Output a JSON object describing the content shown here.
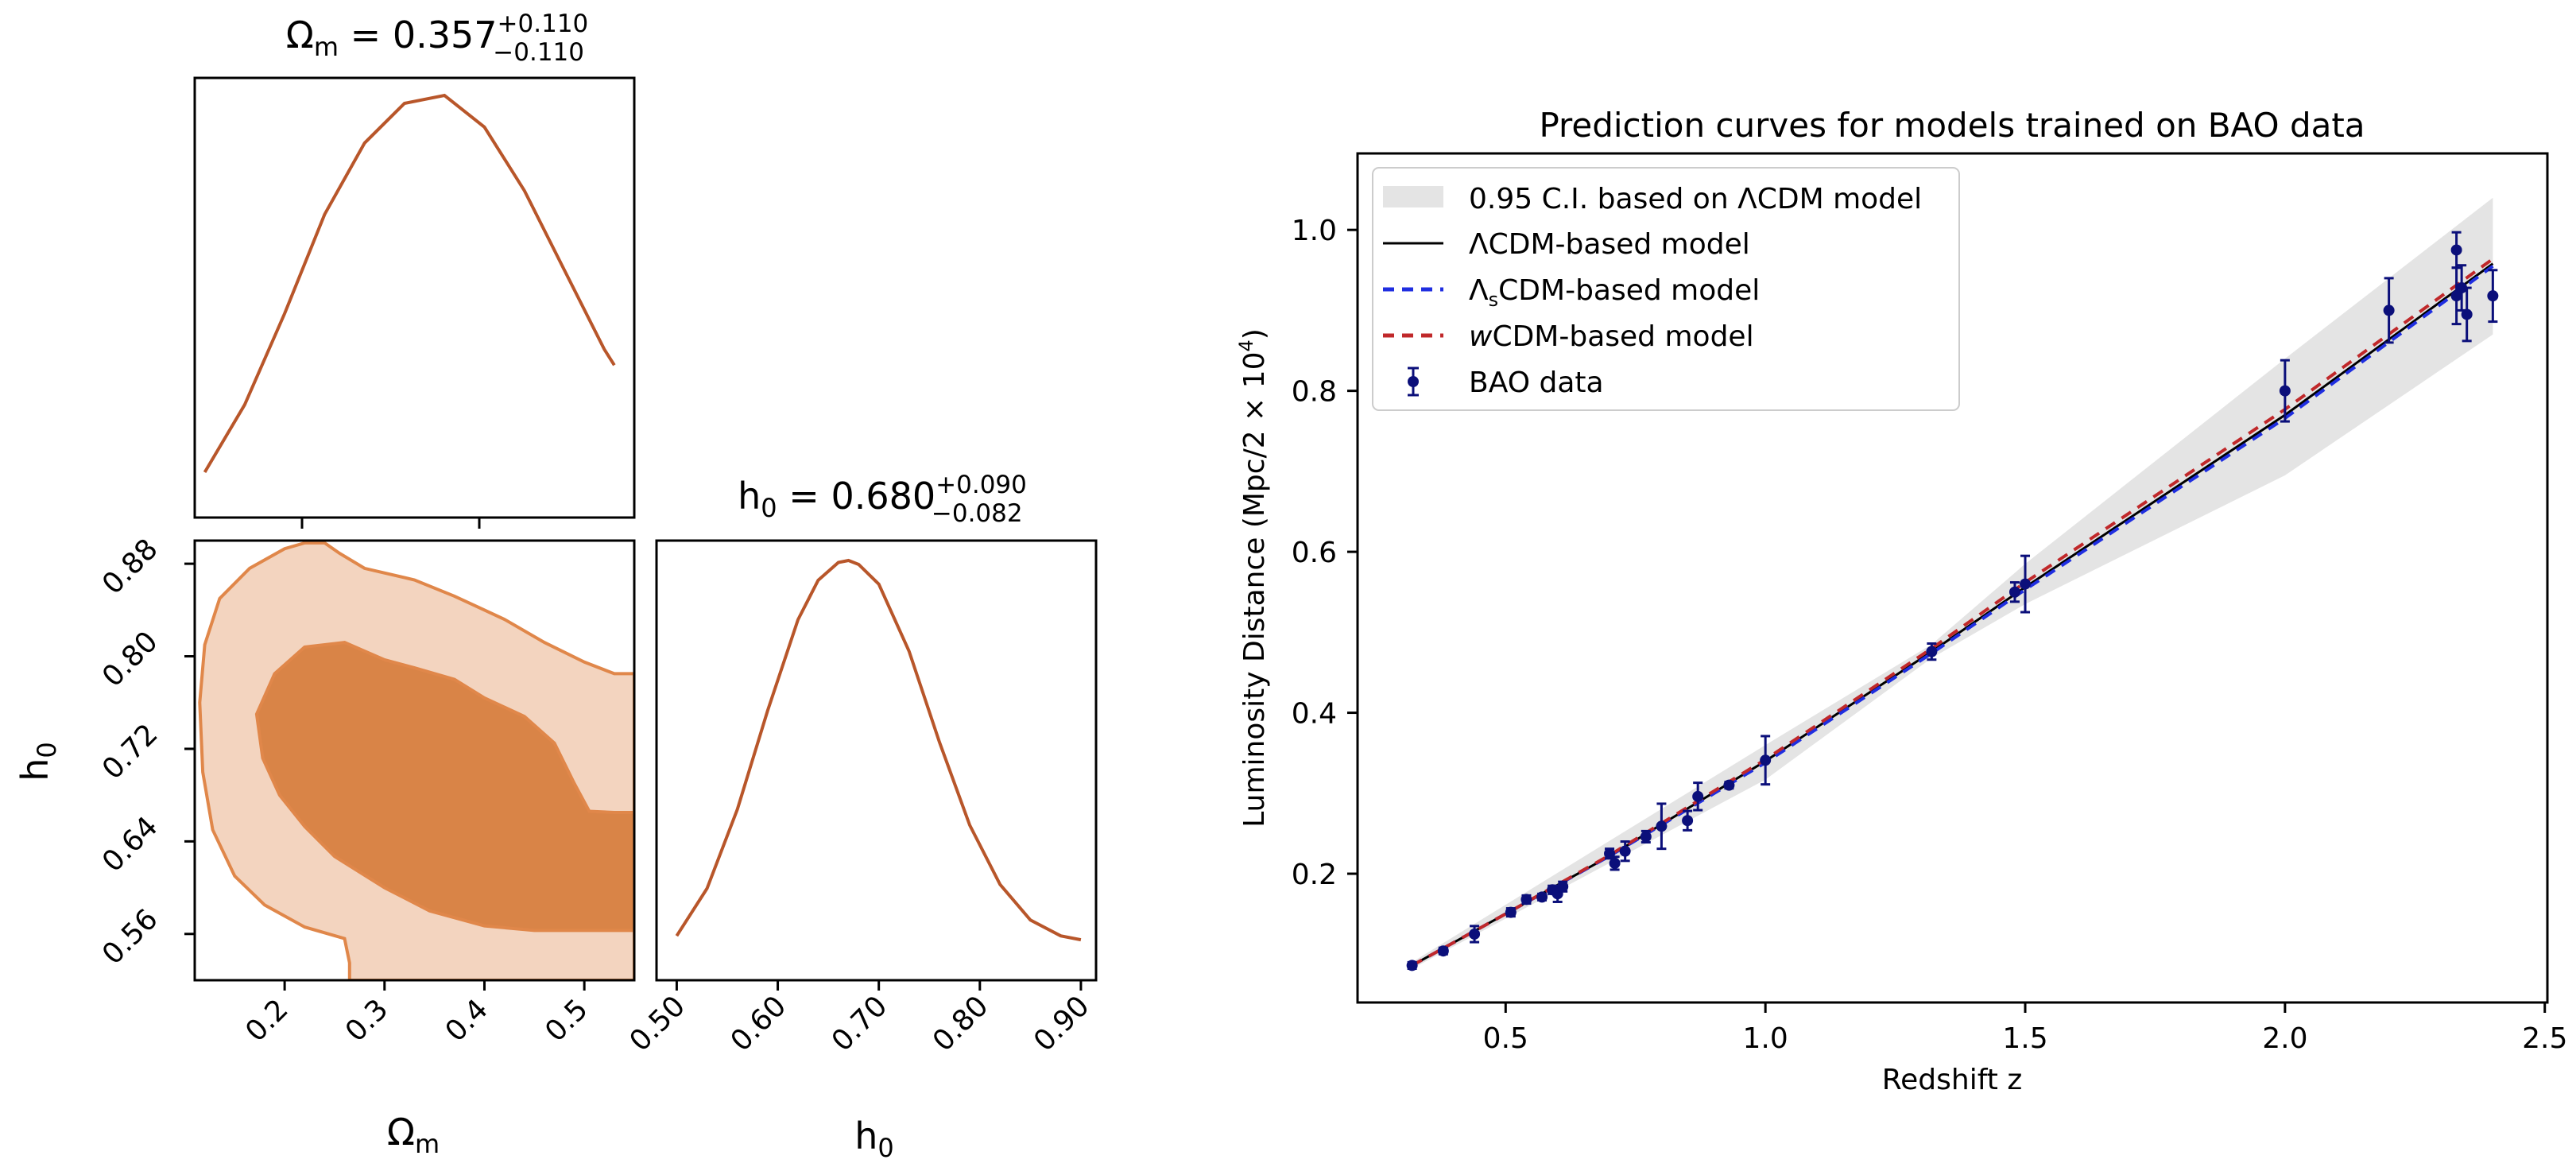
{
  "chart_data": [
    {
      "type": "line",
      "title": "posterior-omega_m",
      "param": {
        "symbol": "Ω",
        "sub": "m",
        "value": "0.357",
        "plus": "+0.110",
        "minus": "−0.110"
      },
      "x": [
        0.12,
        0.16,
        0.2,
        0.24,
        0.28,
        0.32,
        0.36,
        0.4,
        0.44,
        0.48,
        0.52,
        0.53
      ],
      "y": [
        0.05,
        0.22,
        0.45,
        0.7,
        0.88,
        0.98,
        1.0,
        0.92,
        0.76,
        0.56,
        0.36,
        0.32
      ],
      "xlim": [
        0.11,
        0.55
      ],
      "color": "#b8562a"
    },
    {
      "type": "contour",
      "title": "omega_m-vs-h0",
      "xlabel": {
        "symbol": "Ω",
        "sub": "m"
      },
      "ylabel": {
        "symbol": "h",
        "sub": "0"
      },
      "xticks": [
        "0.2",
        "0.3",
        "0.4",
        "0.5"
      ],
      "xtick_values": [
        0.2,
        0.3,
        0.4,
        0.5
      ],
      "yticks": [
        "0.88",
        "0.80",
        "0.72",
        "0.64",
        "0.56"
      ],
      "ytick_values": [
        0.88,
        0.8,
        0.72,
        0.64,
        0.56
      ],
      "xlim": [
        0.11,
        0.55
      ],
      "ylim": [
        0.52,
        0.9
      ],
      "outer_level": [
        [
          0.22,
          0.898
        ],
        [
          0.2,
          0.893
        ],
        [
          0.165,
          0.876
        ],
        [
          0.135,
          0.85
        ],
        [
          0.12,
          0.81
        ],
        [
          0.115,
          0.76
        ],
        [
          0.118,
          0.7
        ],
        [
          0.128,
          0.65
        ],
        [
          0.15,
          0.61
        ],
        [
          0.18,
          0.585
        ],
        [
          0.22,
          0.566
        ],
        [
          0.26,
          0.556
        ],
        [
          0.265,
          0.535
        ],
        [
          0.265,
          0.52
        ],
        [
          0.55,
          0.52
        ],
        [
          0.55,
          0.785
        ],
        [
          0.53,
          0.785
        ],
        [
          0.5,
          0.795
        ],
        [
          0.46,
          0.812
        ],
        [
          0.42,
          0.832
        ],
        [
          0.37,
          0.852
        ],
        [
          0.33,
          0.866
        ],
        [
          0.28,
          0.876
        ],
        [
          0.255,
          0.889
        ],
        [
          0.24,
          0.898
        ]
      ],
      "inner_level": [
        [
          0.26,
          0.812
        ],
        [
          0.22,
          0.808
        ],
        [
          0.19,
          0.785
        ],
        [
          0.172,
          0.75
        ],
        [
          0.178,
          0.712
        ],
        [
          0.195,
          0.68
        ],
        [
          0.22,
          0.653
        ],
        [
          0.25,
          0.627
        ],
        [
          0.3,
          0.6
        ],
        [
          0.345,
          0.58
        ],
        [
          0.4,
          0.567
        ],
        [
          0.45,
          0.563
        ],
        [
          0.5,
          0.563
        ],
        [
          0.55,
          0.563
        ],
        [
          0.55,
          0.665
        ],
        [
          0.53,
          0.665
        ],
        [
          0.505,
          0.666
        ],
        [
          0.49,
          0.69
        ],
        [
          0.47,
          0.725
        ],
        [
          0.44,
          0.748
        ],
        [
          0.4,
          0.764
        ],
        [
          0.37,
          0.78
        ],
        [
          0.33,
          0.79
        ],
        [
          0.3,
          0.797
        ]
      ],
      "outer_color": "#f3d4bf",
      "inner_color": "#d98447",
      "edge_color": "#e0874a"
    },
    {
      "type": "line",
      "title": "posterior-h0",
      "param": {
        "symbol": "h",
        "sub": "0",
        "value": "0.680",
        "plus": "+0.090",
        "minus": "−0.082"
      },
      "xlabel": {
        "symbol": "h",
        "sub": "0"
      },
      "xticks": [
        "0.50",
        "0.60",
        "0.70",
        "0.80",
        "0.90"
      ],
      "xtick_values": [
        0.5,
        0.6,
        0.7,
        0.8,
        0.9
      ],
      "x": [
        0.5,
        0.53,
        0.56,
        0.59,
        0.62,
        0.64,
        0.66,
        0.67,
        0.68,
        0.7,
        0.73,
        0.76,
        0.79,
        0.82,
        0.85,
        0.88,
        0.9
      ],
      "y": [
        0.05,
        0.17,
        0.37,
        0.62,
        0.85,
        0.95,
        0.995,
        1.0,
        0.99,
        0.94,
        0.77,
        0.54,
        0.33,
        0.18,
        0.09,
        0.05,
        0.04
      ],
      "xlim": [
        0.48,
        0.915
      ],
      "color": "#b8562a"
    },
    {
      "type": "line",
      "title": "Prediction curves for models trained on BAO data",
      "xlabel": "Redshift z",
      "ylabel": "Luminosity Distance (Mpc/2 × 10",
      "ylabel_sup": "4",
      "ylabel_close": ")",
      "xticks": [
        "0.5",
        "1.0",
        "1.5",
        "2.0",
        "2.5"
      ],
      "xtick_values": [
        0.5,
        1.0,
        1.5,
        2.0,
        2.5
      ],
      "yticks": [
        "0.2",
        "0.4",
        "0.6",
        "0.8",
        "1.0"
      ],
      "ytick_values": [
        0.2,
        0.4,
        0.6,
        0.8,
        1.0
      ],
      "xlim": [
        0.215,
        2.505
      ],
      "ylim": [
        0.04,
        1.095
      ],
      "legend": {
        "position": "upper left",
        "ci": "0.95 C.I. based on ΛCDM model",
        "lcdm": "ΛCDM-based model",
        "ls_a": "Λ",
        "ls_sub": "s",
        "ls_b": "CDM-based model",
        "w_a": "w",
        "w_b": "CDM-based model",
        "bao": "BAO data"
      },
      "ci_band": {
        "x": [
          0.32,
          1.0,
          1.32,
          1.5,
          2.0,
          2.4
        ],
        "lower": [
          0.082,
          0.317,
          0.468,
          0.535,
          0.695,
          0.87
        ],
        "upper": [
          0.09,
          0.36,
          0.485,
          0.585,
          0.84,
          1.04
        ]
      },
      "series": [
        {
          "name": "ΛCDM-based model",
          "color": "#000000",
          "dash": "",
          "x": [
            0.32,
            0.5,
            0.7,
            1.0,
            1.32,
            1.5,
            2.0,
            2.4
          ],
          "y": [
            0.086,
            0.15,
            0.222,
            0.34,
            0.476,
            0.556,
            0.77,
            0.958
          ]
        },
        {
          "name": "ΛsCDM-based model",
          "color": "#1f2ee0",
          "dash": "14,10",
          "x": [
            0.32,
            0.5,
            0.7,
            1.0,
            1.32,
            1.5,
            2.0,
            2.4
          ],
          "y": [
            0.086,
            0.15,
            0.222,
            0.338,
            0.474,
            0.553,
            0.766,
            0.955
          ]
        },
        {
          "name": "wCDM-based model",
          "color": "#c0282a",
          "dash": "14,10",
          "x": [
            0.32,
            0.5,
            0.7,
            1.0,
            1.32,
            1.5,
            2.0,
            2.4
          ],
          "y": [
            0.086,
            0.15,
            0.223,
            0.342,
            0.48,
            0.562,
            0.777,
            0.964
          ]
        }
      ],
      "bao_points": [
        {
          "x": 0.32,
          "y": 0.086,
          "err": 0.004
        },
        {
          "x": 0.38,
          "y": 0.104,
          "err": 0.004
        },
        {
          "x": 0.44,
          "y": 0.125,
          "err": 0.01
        },
        {
          "x": 0.51,
          "y": 0.152,
          "err": 0.005
        },
        {
          "x": 0.54,
          "y": 0.168,
          "err": 0.005
        },
        {
          "x": 0.57,
          "y": 0.171,
          "err": 0.004
        },
        {
          "x": 0.59,
          "y": 0.18,
          "err": 0.005
        },
        {
          "x": 0.6,
          "y": 0.175,
          "err": 0.01
        },
        {
          "x": 0.61,
          "y": 0.184,
          "err": 0.006
        },
        {
          "x": 0.7,
          "y": 0.225,
          "err": 0.006
        },
        {
          "x": 0.71,
          "y": 0.213,
          "err": 0.008
        },
        {
          "x": 0.73,
          "y": 0.228,
          "err": 0.012
        },
        {
          "x": 0.77,
          "y": 0.246,
          "err": 0.007
        },
        {
          "x": 0.8,
          "y": 0.259,
          "err": 0.028
        },
        {
          "x": 0.85,
          "y": 0.266,
          "err": 0.012
        },
        {
          "x": 0.87,
          "y": 0.296,
          "err": 0.017
        },
        {
          "x": 0.93,
          "y": 0.31,
          "err": 0.004
        },
        {
          "x": 1.0,
          "y": 0.341,
          "err": 0.03
        },
        {
          "x": 1.32,
          "y": 0.476,
          "err": 0.01
        },
        {
          "x": 1.48,
          "y": 0.55,
          "err": 0.012
        },
        {
          "x": 1.5,
          "y": 0.56,
          "err": 0.035
        },
        {
          "x": 2.0,
          "y": 0.8,
          "err": 0.038
        },
        {
          "x": 2.2,
          "y": 0.9,
          "err": 0.04
        },
        {
          "x": 2.33,
          "y": 0.975,
          "err": 0.022
        },
        {
          "x": 2.33,
          "y": 0.918,
          "err": 0.035
        },
        {
          "x": 2.34,
          "y": 0.928,
          "err": 0.028
        },
        {
          "x": 2.35,
          "y": 0.895,
          "err": 0.033
        },
        {
          "x": 2.4,
          "y": 0.918,
          "err": 0.032
        }
      ],
      "point_color": "#0b0f7a"
    }
  ]
}
